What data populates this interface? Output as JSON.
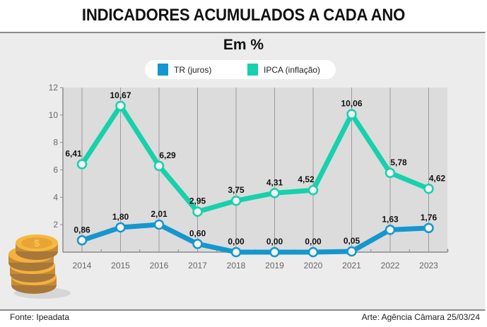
{
  "header": {
    "title": "INDICADORES ACUMULADOS A CADA ANO"
  },
  "footer": {
    "source": "Fonte: Ipeadata",
    "credit": "Arte: Agência Câmara 25/03/24"
  },
  "colors": {
    "tr": "#1497ce",
    "ipca": "#17d1ac",
    "plot_bg": "#dcdcdc",
    "panel_bg": "#ececec"
  },
  "decoration": {
    "icon": "coin-stack-icon"
  },
  "chart_data": {
    "type": "line",
    "title": "Em %",
    "xlabel": "",
    "ylabel": "",
    "x": [
      "2014",
      "2015",
      "2016",
      "2017",
      "2018",
      "2019",
      "2020",
      "2021",
      "2022",
      "2023"
    ],
    "ylim": [
      0,
      12
    ],
    "yticks": [
      2,
      4,
      6,
      8,
      10,
      12
    ],
    "grid": "vertical lines at each year",
    "legend_position": "top-center",
    "series": [
      {
        "name": "TR (juros)",
        "color": "#1497ce",
        "values": [
          0.86,
          1.8,
          2.01,
          0.6,
          0.0,
          0.0,
          0.0,
          0.05,
          1.63,
          1.76
        ],
        "labels": [
          "0,86",
          "1,80",
          "2,01",
          "0,60",
          "0,00",
          "0,00",
          "0,00",
          "0,05",
          "1,63",
          "1,76"
        ]
      },
      {
        "name": "IPCA (inflação)",
        "color": "#17d1ac",
        "values": [
          6.41,
          10.67,
          6.29,
          2.95,
          3.75,
          4.31,
          4.52,
          10.06,
          5.78,
          4.62
        ],
        "labels": [
          "6,41",
          "10,67",
          "6,29",
          "2,95",
          "3,75",
          "4,31",
          "4,52",
          "10,06",
          "5,78",
          "4,62"
        ]
      }
    ]
  }
}
